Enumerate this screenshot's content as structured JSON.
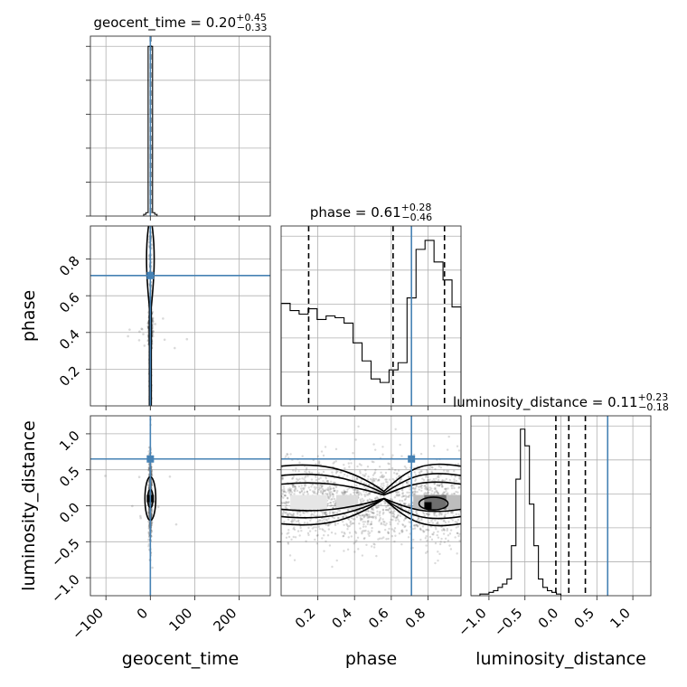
{
  "chart_data": {
    "type": "corner",
    "parameters": [
      "geocent_time",
      "phase",
      "luminosity_distance"
    ],
    "truths": {
      "geocent_time": 0.0,
      "phase": 0.71,
      "luminosity_distance": 0.65
    },
    "titles": [
      {
        "param": "geocent_time",
        "prefix": "geocent_time = ",
        "median": "0.20",
        "plus": "+0.45",
        "minus": "−0.33"
      },
      {
        "param": "phase",
        "prefix": "phase = ",
        "median": "0.61",
        "plus": "+0.28",
        "minus": "−0.46"
      },
      {
        "param": "luminosity_distance",
        "prefix": "luminosity_distance = ",
        "median": "0.11",
        "plus": "+0.23",
        "minus": "−0.18"
      }
    ],
    "ranges": {
      "geocent_time": [
        -135,
        270
      ],
      "phase": [
        0.0,
        0.98
      ],
      "luminosity_distance": [
        -1.25,
        1.25
      ]
    },
    "ticks": {
      "geocent_time": [
        "−100",
        "0",
        "100",
        "200"
      ],
      "phase": [
        "0.2",
        "0.4",
        "0.6",
        "0.8"
      ],
      "luminosity_distance": [
        "−1.0",
        "−0.5",
        "0.0",
        "0.5",
        "1.0"
      ]
    },
    "axis_labels": {
      "x": [
        "geocent_time",
        "phase",
        "luminosity_distance"
      ],
      "y": [
        "phase",
        "luminosity_distance"
      ]
    },
    "quantiles": {
      "geocent_time": [
        -0.13,
        0.2,
        0.65
      ],
      "phase": [
        0.15,
        0.61,
        0.89
      ],
      "luminosity_distance": [
        -0.07,
        0.11,
        0.34
      ]
    },
    "hist_geocent_time": {
      "bin_edges": [
        -15,
        -10,
        -5,
        5,
        10,
        15
      ],
      "counts": [
        0.01,
        0.02,
        1.0,
        0.02,
        0.01
      ]
    },
    "hist_phase": {
      "start": 0.0,
      "bin_width": 0.049,
      "counts": [
        0.57,
        0.53,
        0.51,
        0.54,
        0.48,
        0.5,
        0.49,
        0.46,
        0.35,
        0.25,
        0.15,
        0.13,
        0.2,
        0.24,
        0.6,
        0.87,
        0.92,
        0.8,
        0.7,
        0.55
      ]
    },
    "hist_luminosity_distance": {
      "start": -1.25,
      "bin_width": 0.0625,
      "counts": [
        0,
        0,
        0.01,
        0.01,
        0.02,
        0.03,
        0.05,
        0.07,
        0.1,
        0.3,
        0.7,
        1.0,
        0.9,
        0.55,
        0.3,
        0.1,
        0.05,
        0.03,
        0.02,
        0.01
      ]
    },
    "grid": true
  }
}
